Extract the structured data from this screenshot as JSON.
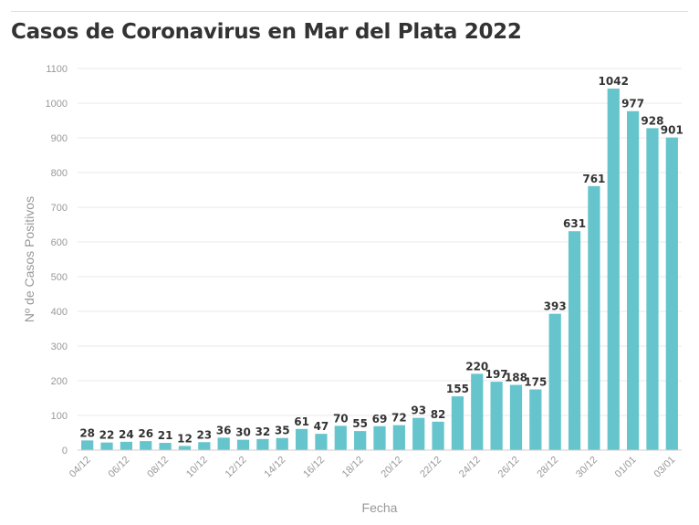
{
  "chart_data": {
    "type": "bar",
    "title": "Casos de Coronavirus en Mar del Plata 2022",
    "xlabel": "Fecha",
    "ylabel": "Nº de Casos Positivos",
    "ylim": [
      0,
      1100
    ],
    "yticks": [
      0,
      100,
      200,
      300,
      400,
      500,
      600,
      700,
      800,
      900,
      1000,
      1100
    ],
    "grid": true,
    "bar_color": "#66c5cc",
    "categories": [
      "04/12",
      "05/12",
      "06/12",
      "07/12",
      "08/12",
      "09/12",
      "10/12",
      "11/12",
      "12/12",
      "13/12",
      "14/12",
      "15/12",
      "16/12",
      "17/12",
      "18/12",
      "19/12",
      "20/12",
      "21/12",
      "22/12",
      "23/12",
      "24/12",
      "25/12",
      "26/12",
      "27/12",
      "28/12",
      "29/12",
      "30/12",
      "31/12",
      "01/01",
      "02/01",
      "03/01"
    ],
    "tick_labels": [
      "04/12",
      "",
      "06/12",
      "",
      "08/12",
      "",
      "10/12",
      "",
      "12/12",
      "",
      "14/12",
      "",
      "16/12",
      "",
      "18/12",
      "",
      "20/12",
      "",
      "22/12",
      "",
      "24/12",
      "",
      "26/12",
      "",
      "28/12",
      "",
      "30/12",
      "",
      "01/01",
      "",
      "03/01"
    ],
    "values": [
      28,
      22,
      24,
      26,
      21,
      12,
      23,
      36,
      30,
      32,
      35,
      61,
      47,
      70,
      55,
      69,
      72,
      93,
      82,
      155,
      220,
      197,
      188,
      175,
      393,
      631,
      761,
      1042,
      977,
      928,
      901
    ]
  }
}
